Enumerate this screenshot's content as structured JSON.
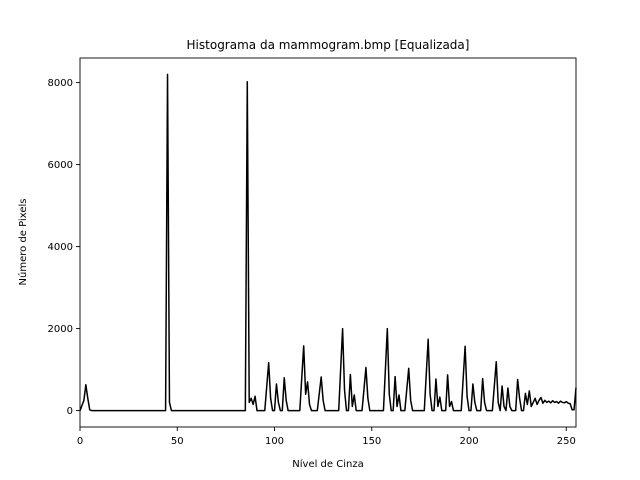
{
  "chart_data": {
    "type": "line",
    "title": "Histograma da mammogram.bmp [Equalizada]",
    "xlabel": "Nível de Cinza",
    "ylabel": "Número de Pixels",
    "xlim": [
      0,
      255
    ],
    "ylim": [
      -400,
      8600
    ],
    "xticks": [
      0,
      50,
      100,
      150,
      200,
      250
    ],
    "yticks": [
      0,
      2000,
      4000,
      6000,
      8000
    ],
    "grid": false,
    "legend": "none",
    "line_color": "#000000",
    "series": [
      {
        "values": [
          [
            0,
            0
          ],
          [
            2,
            250
          ],
          [
            3,
            630
          ],
          [
            4,
            300
          ],
          [
            5,
            20
          ],
          [
            6,
            0
          ],
          [
            44,
            0
          ],
          [
            45,
            8200
          ],
          [
            46,
            200
          ],
          [
            47,
            0
          ],
          [
            85,
            0
          ],
          [
            86,
            8020
          ],
          [
            87,
            200
          ],
          [
            88,
            300
          ],
          [
            89,
            150
          ],
          [
            90,
            350
          ],
          [
            91,
            0
          ],
          [
            95,
            0
          ],
          [
            97,
            1170
          ],
          [
            98,
            300
          ],
          [
            99,
            0
          ],
          [
            100,
            0
          ],
          [
            101,
            650
          ],
          [
            102,
            200
          ],
          [
            103,
            0
          ],
          [
            104,
            0
          ],
          [
            105,
            800
          ],
          [
            106,
            250
          ],
          [
            107,
            0
          ],
          [
            113,
            0
          ],
          [
            115,
            1580
          ],
          [
            116,
            400
          ],
          [
            117,
            700
          ],
          [
            118,
            150
          ],
          [
            119,
            0
          ],
          [
            122,
            0
          ],
          [
            124,
            820
          ],
          [
            125,
            250
          ],
          [
            126,
            0
          ],
          [
            133,
            0
          ],
          [
            135,
            2000
          ],
          [
            136,
            500
          ],
          [
            137,
            0
          ],
          [
            138,
            0
          ],
          [
            139,
            880
          ],
          [
            140,
            100
          ],
          [
            141,
            380
          ],
          [
            142,
            0
          ],
          [
            145,
            0
          ],
          [
            147,
            1050
          ],
          [
            148,
            300
          ],
          [
            149,
            0
          ],
          [
            156,
            0
          ],
          [
            158,
            2000
          ],
          [
            159,
            400
          ],
          [
            160,
            0
          ],
          [
            161,
            0
          ],
          [
            162,
            830
          ],
          [
            163,
            100
          ],
          [
            164,
            380
          ],
          [
            165,
            0
          ],
          [
            167,
            0
          ],
          [
            169,
            1030
          ],
          [
            170,
            250
          ],
          [
            171,
            0
          ],
          [
            177,
            0
          ],
          [
            179,
            1740
          ],
          [
            180,
            400
          ],
          [
            181,
            0
          ],
          [
            182,
            0
          ],
          [
            183,
            770
          ],
          [
            184,
            100
          ],
          [
            185,
            330
          ],
          [
            186,
            0
          ],
          [
            188,
            0
          ],
          [
            189,
            870
          ],
          [
            190,
            100
          ],
          [
            191,
            220
          ],
          [
            192,
            0
          ],
          [
            196,
            0
          ],
          [
            198,
            1570
          ],
          [
            199,
            350
          ],
          [
            200,
            0
          ],
          [
            201,
            0
          ],
          [
            202,
            650
          ],
          [
            203,
            200
          ],
          [
            204,
            0
          ],
          [
            206,
            0
          ],
          [
            207,
            780
          ],
          [
            208,
            200
          ],
          [
            209,
            0
          ],
          [
            212,
            0
          ],
          [
            214,
            1190
          ],
          [
            215,
            200
          ],
          [
            216,
            0
          ],
          [
            217,
            600
          ],
          [
            218,
            100
          ],
          [
            219,
            0
          ],
          [
            220,
            550
          ],
          [
            221,
            100
          ],
          [
            222,
            0
          ],
          [
            224,
            0
          ],
          [
            225,
            760
          ],
          [
            226,
            300
          ],
          [
            227,
            0
          ],
          [
            228,
            0
          ],
          [
            229,
            420
          ],
          [
            230,
            150
          ],
          [
            231,
            480
          ],
          [
            232,
            100
          ],
          [
            233,
            200
          ],
          [
            234,
            300
          ],
          [
            235,
            150
          ],
          [
            236,
            250
          ],
          [
            237,
            320
          ],
          [
            238,
            180
          ],
          [
            239,
            250
          ],
          [
            240,
            200
          ],
          [
            241,
            230
          ],
          [
            242,
            190
          ],
          [
            243,
            240
          ],
          [
            244,
            200
          ],
          [
            245,
            220
          ],
          [
            246,
            180
          ],
          [
            247,
            230
          ],
          [
            248,
            200
          ],
          [
            249,
            190
          ],
          [
            250,
            220
          ],
          [
            251,
            180
          ],
          [
            252,
            170
          ],
          [
            253,
            20
          ],
          [
            254,
            20
          ],
          [
            255,
            560
          ]
        ]
      }
    ]
  }
}
